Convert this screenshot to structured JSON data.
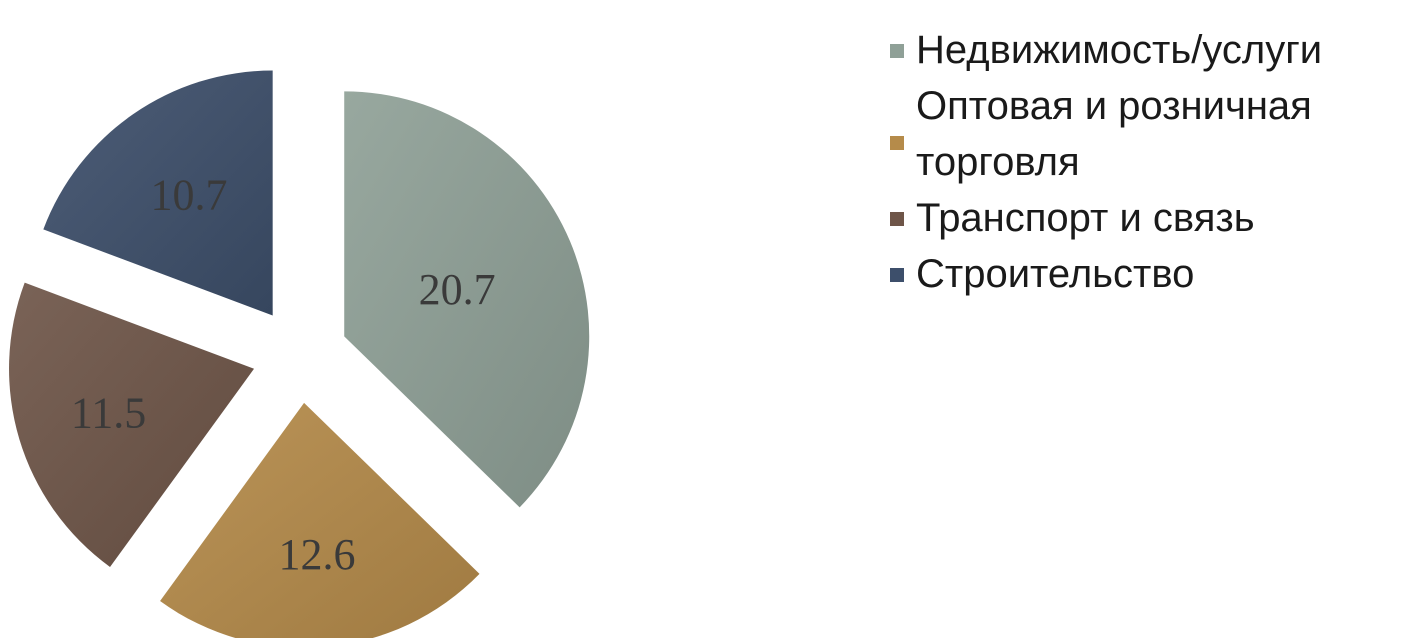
{
  "chart_data": {
    "type": "pie",
    "exploded": true,
    "categories": [
      "Недвижимость/услуги",
      "Оптовая и розничная торговля",
      "Транспорт и связь",
      "Строительство"
    ],
    "values": [
      20.7,
      12.6,
      11.5,
      10.7
    ],
    "value_labels": [
      "20.7",
      "12.6",
      "11.5",
      "10.7"
    ],
    "colors": [
      "#8fa097",
      "#b58b4a",
      "#6e5548",
      "#3d4f6b"
    ],
    "legend_position": "right",
    "start_angle_deg": 0,
    "direction": "clockwise"
  },
  "legend": {
    "items": [
      {
        "label": "Недвижимость/услуги",
        "color": "#8fa097"
      },
      {
        "label": "Оптовая и розничная торговля",
        "color": "#b58b4a"
      },
      {
        "label": "Транспорт и связь",
        "color": "#6e5548"
      },
      {
        "label": "Строительство",
        "color": "#3d4f6b"
      }
    ]
  }
}
